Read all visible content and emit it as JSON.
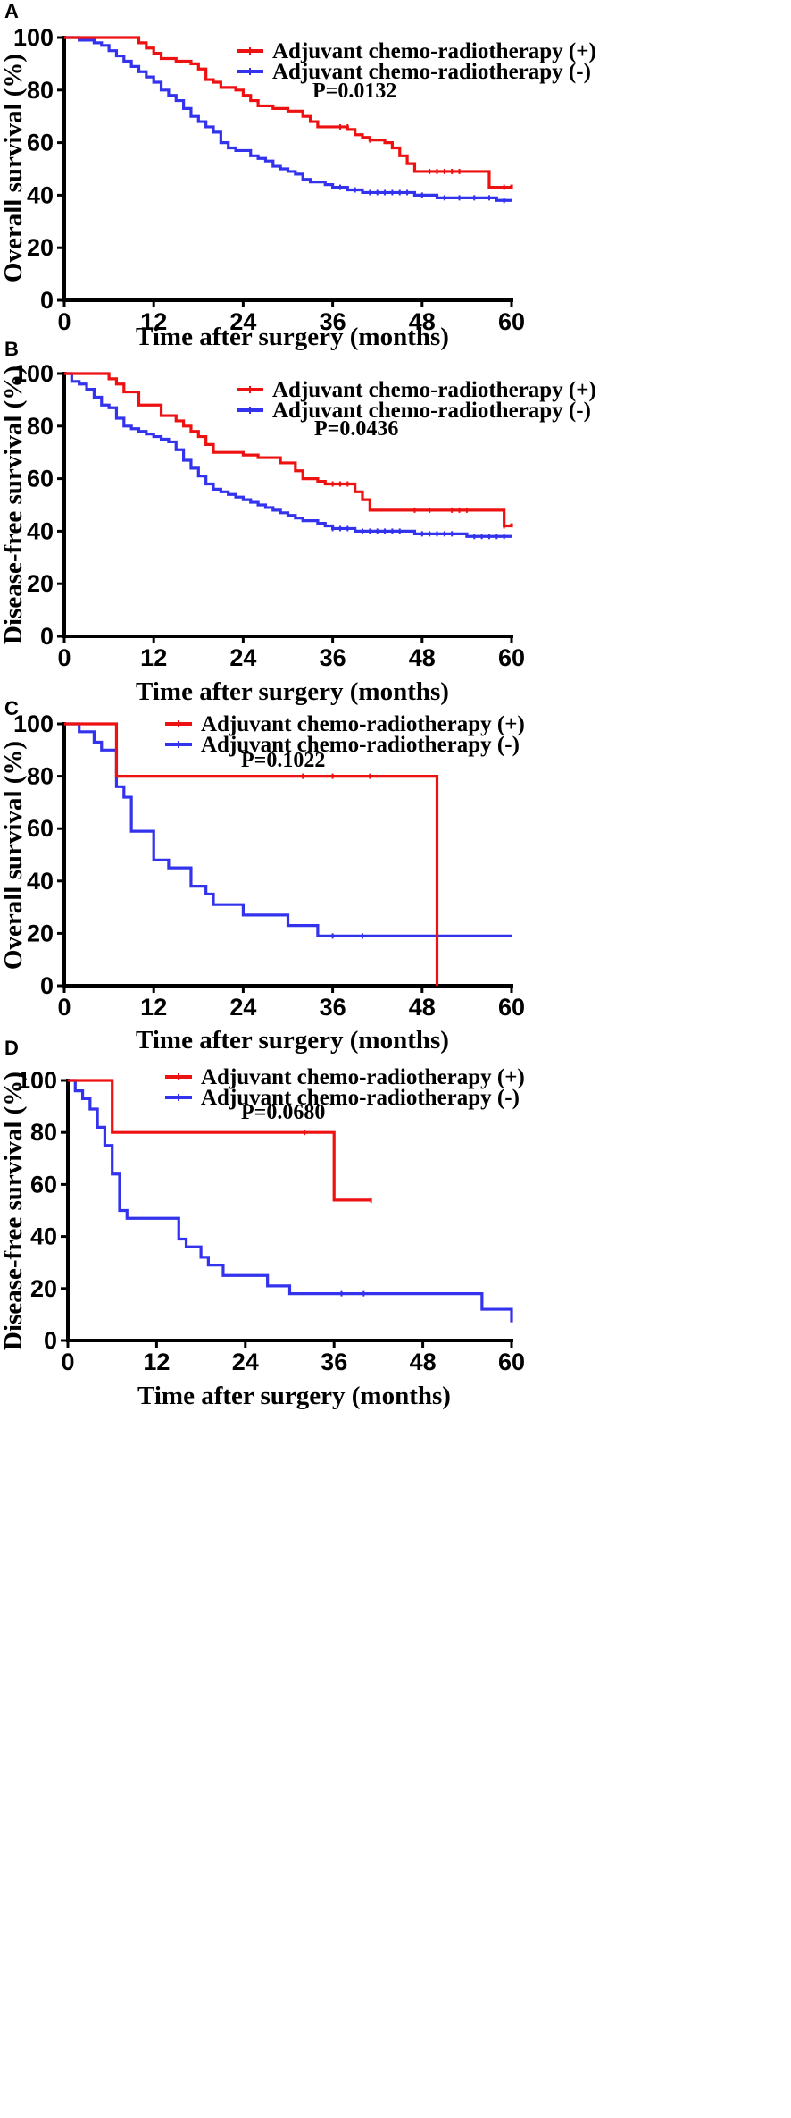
{
  "colors": {
    "plus": "#ee1111",
    "minus": "#3333ee",
    "axis": "#000000"
  },
  "chart_data": [
    {
      "type": "line",
      "subtype": "kaplan-meier",
      "panel": "A",
      "xlabel": "Time after surgery  (months)",
      "ylabel": "Overall survival (%)",
      "xticks": [
        0,
        12,
        24,
        36,
        48,
        60
      ],
      "yticks": [
        0,
        20,
        40,
        60,
        80,
        100
      ],
      "xlim": [
        0,
        60
      ],
      "ylim": [
        0,
        100
      ],
      "p_value": "P=0.0132",
      "legend": [
        "Adjuvant chemo-radiotherapy (+)",
        "Adjuvant chemo-radiotherapy (-)"
      ],
      "series": [
        {
          "name": "Adjuvant chemo-radiotherapy (+)",
          "color": "plus",
          "steps": [
            [
              0,
              100
            ],
            [
              10,
              98
            ],
            [
              11,
              96
            ],
            [
              12,
              94
            ],
            [
              13,
              92
            ],
            [
              15,
              91
            ],
            [
              17,
              90
            ],
            [
              18,
              88
            ],
            [
              19,
              84
            ],
            [
              20,
              83
            ],
            [
              21,
              81
            ],
            [
              23,
              80
            ],
            [
              24,
              78
            ],
            [
              25,
              76
            ],
            [
              26,
              74
            ],
            [
              28,
              73
            ],
            [
              30,
              72
            ],
            [
              32,
              70
            ],
            [
              33,
              68
            ],
            [
              34,
              66
            ],
            [
              38,
              65
            ],
            [
              39,
              63
            ],
            [
              40,
              62
            ],
            [
              41,
              61
            ],
            [
              43,
              60
            ],
            [
              44,
              58
            ],
            [
              45,
              55
            ],
            [
              46,
              52
            ],
            [
              47,
              49
            ],
            [
              48,
              49
            ],
            [
              57,
              43
            ],
            [
              59,
              43
            ],
            [
              60,
              44
            ]
          ],
          "censored": [
            [
              37,
              66
            ],
            [
              38,
              66
            ],
            [
              41,
              61
            ],
            [
              49,
              49
            ],
            [
              50,
              49
            ],
            [
              51,
              49
            ],
            [
              52,
              49
            ],
            [
              53,
              49
            ],
            [
              59,
              43
            ]
          ]
        },
        {
          "name": "Adjuvant chemo-radiotherapy (-)",
          "color": "minus",
          "steps": [
            [
              0,
              100
            ],
            [
              2,
              99
            ],
            [
              4,
              98
            ],
            [
              5,
              97
            ],
            [
              6,
              95
            ],
            [
              7,
              93
            ],
            [
              8,
              91
            ],
            [
              9,
              89
            ],
            [
              10,
              87
            ],
            [
              11,
              85
            ],
            [
              12,
              83
            ],
            [
              13,
              80
            ],
            [
              14,
              78
            ],
            [
              15,
              76
            ],
            [
              16,
              73
            ],
            [
              17,
              70
            ],
            [
              18,
              68
            ],
            [
              19,
              66
            ],
            [
              20,
              64
            ],
            [
              21,
              60
            ],
            [
              22,
              58
            ],
            [
              23,
              57
            ],
            [
              25,
              55
            ],
            [
              26,
              54
            ],
            [
              27,
              53
            ],
            [
              28,
              51
            ],
            [
              29,
              50
            ],
            [
              30,
              49
            ],
            [
              31,
              48
            ],
            [
              32,
              46
            ],
            [
              33,
              45
            ],
            [
              35,
              44
            ],
            [
              36,
              43
            ],
            [
              38,
              42
            ],
            [
              40,
              41
            ],
            [
              47,
              40
            ],
            [
              50,
              39
            ],
            [
              58,
              38
            ],
            [
              60,
              38
            ]
          ],
          "censored": [
            [
              37,
              43
            ],
            [
              39,
              42
            ],
            [
              41,
              41
            ],
            [
              42,
              41
            ],
            [
              43,
              41
            ],
            [
              44,
              41
            ],
            [
              45,
              41
            ],
            [
              46,
              41
            ],
            [
              48,
              40
            ],
            [
              51,
              39
            ],
            [
              53,
              39
            ],
            [
              55,
              39
            ],
            [
              57,
              39
            ],
            [
              59,
              38
            ]
          ]
        }
      ]
    },
    {
      "type": "line",
      "subtype": "kaplan-meier",
      "panel": "B",
      "xlabel": "Time after surgery  (months)",
      "ylabel": "Disease-free survival (%)",
      "xticks": [
        0,
        12,
        24,
        36,
        48,
        60
      ],
      "yticks": [
        0,
        20,
        40,
        60,
        80,
        100
      ],
      "xlim": [
        0,
        60
      ],
      "ylim": [
        0,
        100
      ],
      "p_value": "P=0.0436",
      "legend": [
        "Adjuvant chemo-radiotherapy (+)",
        "Adjuvant chemo-radiotherapy (-)"
      ],
      "series": [
        {
          "name": "Adjuvant chemo-radiotherapy (+)",
          "color": "plus",
          "steps": [
            [
              0,
              100
            ],
            [
              6,
              98
            ],
            [
              7,
              96
            ],
            [
              8,
              93
            ],
            [
              10,
              88
            ],
            [
              13,
              84
            ],
            [
              15,
              82
            ],
            [
              16,
              80
            ],
            [
              17,
              78
            ],
            [
              18,
              76
            ],
            [
              19,
              73
            ],
            [
              20,
              70
            ],
            [
              24,
              69
            ],
            [
              26,
              68
            ],
            [
              29,
              66
            ],
            [
              31,
              63
            ],
            [
              32,
              60
            ],
            [
              34,
              59
            ],
            [
              35,
              58
            ],
            [
              39,
              55
            ],
            [
              40,
              52
            ],
            [
              41,
              48
            ],
            [
              58,
              48
            ],
            [
              59,
              42
            ],
            [
              60,
              43
            ]
          ],
          "censored": [
            [
              36,
              58
            ],
            [
              37,
              58
            ],
            [
              38,
              58
            ],
            [
              47,
              48
            ],
            [
              49,
              48
            ],
            [
              52,
              48
            ],
            [
              53,
              48
            ],
            [
              54,
              48
            ],
            [
              59,
              42
            ]
          ]
        },
        {
          "name": "Adjuvant chemo-radiotherapy (-)",
          "color": "minus",
          "steps": [
            [
              0,
              100
            ],
            [
              1,
              97
            ],
            [
              2,
              96
            ],
            [
              3,
              94
            ],
            [
              4,
              91
            ],
            [
              5,
              88
            ],
            [
              6,
              87
            ],
            [
              7,
              83
            ],
            [
              8,
              80
            ],
            [
              9,
              79
            ],
            [
              10,
              78
            ],
            [
              11,
              77
            ],
            [
              12,
              76
            ],
            [
              13,
              75
            ],
            [
              14,
              74
            ],
            [
              15,
              71
            ],
            [
              16,
              67
            ],
            [
              17,
              64
            ],
            [
              18,
              61
            ],
            [
              19,
              58
            ],
            [
              20,
              56
            ],
            [
              21,
              55
            ],
            [
              22,
              54
            ],
            [
              23,
              53
            ],
            [
              24,
              52
            ],
            [
              25,
              51
            ],
            [
              26,
              50
            ],
            [
              27,
              49
            ],
            [
              28,
              48
            ],
            [
              29,
              47
            ],
            [
              30,
              46
            ],
            [
              31,
              45
            ],
            [
              32,
              44
            ],
            [
              34,
              43
            ],
            [
              35,
              42
            ],
            [
              36,
              41
            ],
            [
              39,
              40
            ],
            [
              46,
              40
            ],
            [
              47,
              39
            ],
            [
              53,
              39
            ],
            [
              54,
              38
            ],
            [
              60,
              38
            ]
          ],
          "censored": [
            [
              36,
              41
            ],
            [
              37,
              41
            ],
            [
              38,
              41
            ],
            [
              40,
              40
            ],
            [
              41,
              40
            ],
            [
              42,
              40
            ],
            [
              43,
              40
            ],
            [
              44,
              40
            ],
            [
              45,
              40
            ],
            [
              48,
              39
            ],
            [
              49,
              39
            ],
            [
              50,
              39
            ],
            [
              51,
              39
            ],
            [
              52,
              39
            ],
            [
              55,
              38
            ],
            [
              56,
              38
            ],
            [
              57,
              38
            ],
            [
              58,
              38
            ],
            [
              59,
              38
            ]
          ]
        }
      ]
    },
    {
      "type": "line",
      "subtype": "kaplan-meier",
      "panel": "C",
      "xlabel": "Time after surgery  (months)",
      "ylabel": "Overall survival (%)",
      "xticks": [
        0,
        12,
        24,
        36,
        48,
        60
      ],
      "yticks": [
        0,
        20,
        40,
        60,
        80,
        100
      ],
      "xlim": [
        0,
        60
      ],
      "ylim": [
        0,
        100
      ],
      "p_value": "P=0.1022",
      "legend": [
        "Adjuvant chemo-radiotherapy (+)",
        "Adjuvant chemo-radiotherapy (-)"
      ],
      "series": [
        {
          "name": "Adjuvant chemo-radiotherapy (+)",
          "color": "plus",
          "steps": [
            [
              0,
              100
            ],
            [
              7,
              80
            ],
            [
              50,
              0
            ]
          ],
          "censored": [
            [
              32,
              80
            ],
            [
              36,
              80
            ],
            [
              41,
              80
            ]
          ]
        },
        {
          "name": "Adjuvant chemo-radiotherapy (-)",
          "color": "minus",
          "steps": [
            [
              0,
              100
            ],
            [
              2,
              97
            ],
            [
              4,
              93
            ],
            [
              5,
              90
            ],
            [
              7,
              76
            ],
            [
              8,
              72
            ],
            [
              9,
              59
            ],
            [
              12,
              48
            ],
            [
              14,
              45
            ],
            [
              17,
              38
            ],
            [
              19,
              35
            ],
            [
              20,
              31
            ],
            [
              24,
              27
            ],
            [
              30,
              23
            ],
            [
              34,
              19
            ],
            [
              60,
              19
            ]
          ],
          "censored": [
            [
              36,
              19
            ],
            [
              40,
              19
            ]
          ]
        }
      ]
    },
    {
      "type": "line",
      "subtype": "kaplan-meier",
      "panel": "D",
      "xlabel": "Time after surgery  (months)",
      "ylabel": "Disease-free survival (%)",
      "xticks": [
        0,
        12,
        24,
        36,
        48,
        60
      ],
      "yticks": [
        0,
        20,
        40,
        60,
        80,
        100
      ],
      "xlim": [
        0,
        60
      ],
      "ylim": [
        0,
        100
      ],
      "p_value": "P=0.0680",
      "legend": [
        "Adjuvant chemo-radiotherapy (+)",
        "Adjuvant chemo-radiotherapy (-)"
      ],
      "series": [
        {
          "name": "Adjuvant chemo-radiotherapy (+)",
          "color": "plus",
          "steps": [
            [
              0,
              100
            ],
            [
              6,
              80
            ],
            [
              36,
              54
            ],
            [
              41,
              54
            ]
          ],
          "censored": [
            [
              32,
              80
            ],
            [
              41,
              54
            ]
          ]
        },
        {
          "name": "Adjuvant chemo-radiotherapy (-)",
          "color": "minus",
          "steps": [
            [
              0,
              100
            ],
            [
              1,
              96
            ],
            [
              2,
              93
            ],
            [
              3,
              89
            ],
            [
              4,
              82
            ],
            [
              5,
              75
            ],
            [
              6,
              64
            ],
            [
              7,
              50
            ],
            [
              8,
              47
            ],
            [
              15,
              39
            ],
            [
              16,
              36
            ],
            [
              18,
              32
            ],
            [
              19,
              29
            ],
            [
              21,
              25
            ],
            [
              27,
              21
            ],
            [
              30,
              18
            ],
            [
              56,
              12
            ],
            [
              60,
              7
            ]
          ],
          "censored": [
            [
              37,
              18
            ],
            [
              40,
              18
            ]
          ]
        }
      ]
    }
  ]
}
